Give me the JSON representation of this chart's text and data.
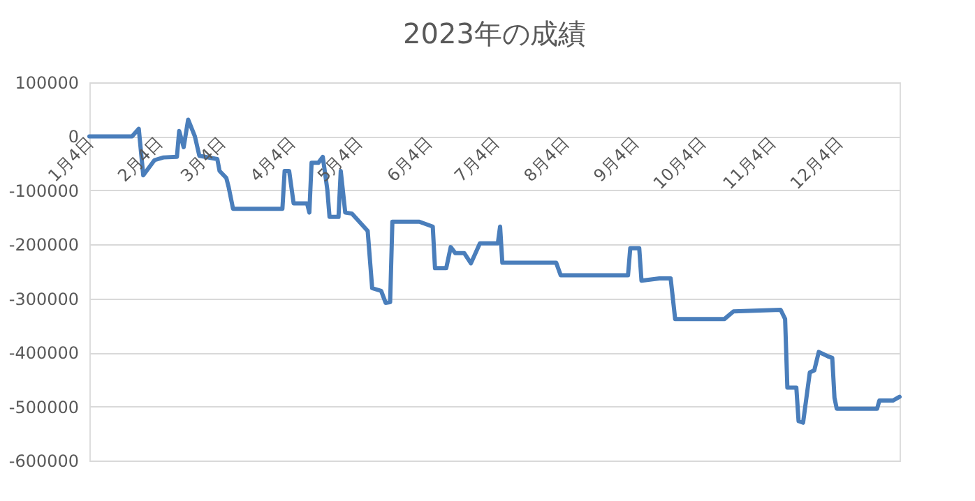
{
  "chart_data": {
    "type": "line",
    "title": "2023年の成績",
    "x": [
      "2023-01-04",
      "2023-01-23",
      "2023-01-26",
      "2023-01-28",
      "2023-02-02",
      "2023-02-06",
      "2023-02-12",
      "2023-02-13",
      "2023-02-15",
      "2023-02-17",
      "2023-02-20",
      "2023-02-22",
      "2023-03-02",
      "2023-03-03",
      "2023-03-06",
      "2023-03-07",
      "2023-03-09",
      "2023-03-31",
      "2023-04-01",
      "2023-04-03",
      "2023-04-05",
      "2023-04-11",
      "2023-04-12",
      "2023-04-13",
      "2023-04-16",
      "2023-04-18",
      "2023-04-20",
      "2023-04-21",
      "2023-04-25",
      "2023-04-26",
      "2023-04-28",
      "2023-05-01",
      "2023-05-08",
      "2023-05-10",
      "2023-05-14",
      "2023-05-16",
      "2023-05-18",
      "2023-05-19",
      "2023-05-31",
      "2023-06-06",
      "2023-06-07",
      "2023-06-12",
      "2023-06-14",
      "2023-06-16",
      "2023-06-20",
      "2023-06-23",
      "2023-06-27",
      "2023-07-05",
      "2023-07-06",
      "2023-07-07",
      "2023-07-31",
      "2023-08-02",
      "2023-09-01",
      "2023-09-02",
      "2023-09-06",
      "2023-09-07",
      "2023-09-15",
      "2023-09-20",
      "2023-09-22",
      "2023-10-14",
      "2023-10-18",
      "2023-11-08",
      "2023-11-10",
      "2023-11-11",
      "2023-11-15",
      "2023-11-16",
      "2023-11-18",
      "2023-11-21",
      "2023-11-23",
      "2023-11-25",
      "2023-11-29",
      "2023-12-01",
      "2023-12-02",
      "2023-12-03",
      "2023-12-21",
      "2023-12-22",
      "2023-12-28",
      "2023-12-31"
    ],
    "series": [
      {
        "color": "#4a7ebb",
        "values": [
          0,
          0,
          14000,
          -72000,
          -44000,
          -39000,
          -38000,
          10000,
          -20000,
          31000,
          0,
          -36000,
          -42000,
          -64000,
          -77000,
          -93000,
          -134000,
          -134000,
          -64000,
          -64000,
          -124000,
          -124000,
          -141000,
          -49000,
          -49000,
          -38000,
          -98000,
          -149000,
          -149000,
          -64000,
          -141000,
          -143000,
          -175000,
          -281000,
          -286000,
          -308000,
          -307000,
          -158000,
          -158000,
          -167000,
          -244000,
          -244000,
          -205000,
          -216000,
          -216000,
          -235000,
          -198000,
          -198000,
          -167000,
          -234000,
          -234000,
          -257000,
          -257000,
          -207000,
          -207000,
          -267000,
          -263000,
          -263000,
          -338000,
          -338000,
          -324000,
          -321000,
          -338000,
          -465000,
          -465000,
          -527000,
          -530000,
          -437000,
          -433000,
          -399000,
          -407000,
          -410000,
          -484000,
          -504000,
          -504000,
          -489000,
          -489000,
          -482000
        ]
      }
    ],
    "xlim": [
      "2023-01-04",
      "2023-12-31"
    ],
    "xticks": [
      {
        "value": "2023-01-04",
        "label": "1月4日"
      },
      {
        "value": "2023-02-04",
        "label": "2月4日"
      },
      {
        "value": "2023-03-04",
        "label": "3月4日"
      },
      {
        "value": "2023-04-04",
        "label": "4月4日"
      },
      {
        "value": "2023-05-04",
        "label": "5月4日"
      },
      {
        "value": "2023-06-04",
        "label": "6月4日"
      },
      {
        "value": "2023-07-04",
        "label": "7月4日"
      },
      {
        "value": "2023-08-04",
        "label": "8月4日"
      },
      {
        "value": "2023-09-04",
        "label": "9月4日"
      },
      {
        "value": "2023-10-04",
        "label": "10月4日"
      },
      {
        "value": "2023-11-04",
        "label": "11月4日"
      },
      {
        "value": "2023-12-04",
        "label": "12月4日"
      }
    ],
    "ylim": [
      -600000,
      100000
    ],
    "yticks": [
      -600000,
      -500000,
      -400000,
      -300000,
      -200000,
      -100000,
      0,
      100000
    ],
    "grid": "y",
    "line_style": "solid",
    "marker": "none"
  }
}
